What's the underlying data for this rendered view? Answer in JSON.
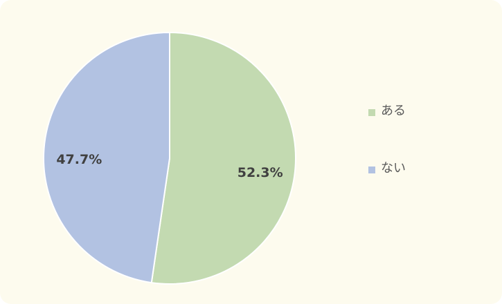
{
  "chart_data": {
    "type": "pie",
    "categories": [
      "ある",
      "ない"
    ],
    "values": [
      52.3,
      47.7
    ],
    "value_labels": [
      "52.3%",
      "47.7%"
    ],
    "colors": [
      "#c3dab1",
      "#b2c2e2"
    ],
    "legend": "right"
  }
}
